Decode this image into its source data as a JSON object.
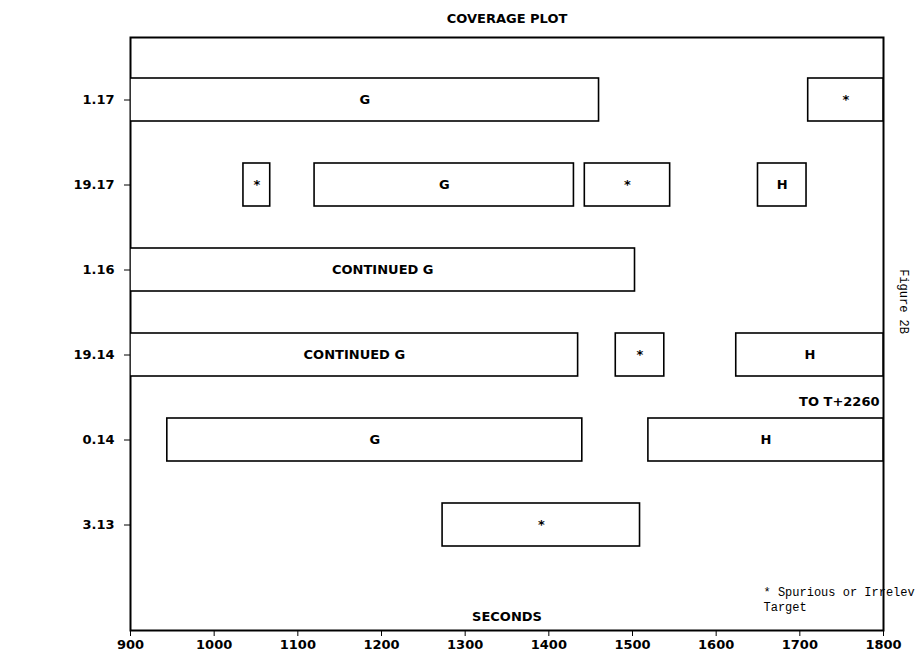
{
  "chart_data": {
    "type": "bar",
    "orientation": "horizontal",
    "title": "COVERAGE PLOT",
    "xlabel": "SECONDS",
    "figure_label": "Figure 2B",
    "color": "#ffffff",
    "categories": [
      "1.17",
      "19.17",
      "1.16",
      "19.14",
      "0.14",
      "3.13"
    ],
    "bars": [
      {
        "row": "1.17",
        "start": 900,
        "end": 1460,
        "label": "G"
      },
      {
        "row": "1.17",
        "start": 1710,
        "end": 1800,
        "label": "*"
      },
      {
        "row": "19.17",
        "start": 1035,
        "end": 1067,
        "label": "*"
      },
      {
        "row": "19.17",
        "start": 1120,
        "end": 1430,
        "label": "G"
      },
      {
        "row": "19.17",
        "start": 1443,
        "end": 1545,
        "label": "*"
      },
      {
        "row": "19.17",
        "start": 1650,
        "end": 1708,
        "label": "H"
      },
      {
        "row": "1.16",
        "start": 900,
        "end": 1503,
        "label": "CONTINUED G"
      },
      {
        "row": "19.14",
        "start": 900,
        "end": 1435,
        "label": "CONTINUED G"
      },
      {
        "row": "19.14",
        "start": 1480,
        "end": 1538,
        "label": "*"
      },
      {
        "row": "19.14",
        "start": 1624,
        "end": 1800,
        "label": "H"
      },
      {
        "row": "0.14",
        "start": 944,
        "end": 1440,
        "label": "G"
      },
      {
        "row": "0.14",
        "start": 1519,
        "end": 1800,
        "label": "H"
      },
      {
        "row": "3.13",
        "start": 1273,
        "end": 1509,
        "label": "*"
      }
    ],
    "annotations": [
      {
        "text": "TO T+2260",
        "row": "0.14"
      }
    ],
    "note": [
      "* Spurious or Irrelevant",
      "Target"
    ],
    "xlim": [
      900,
      1800
    ],
    "xticks": [
      900,
      1000,
      1100,
      1200,
      1300,
      1400,
      1500,
      1600,
      1700,
      1800
    ],
    "grid": false
  }
}
